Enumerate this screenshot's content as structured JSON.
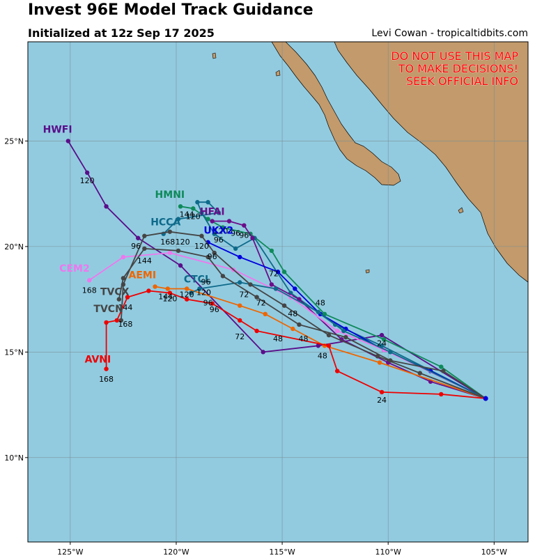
{
  "title": "Invest 96E Model Track Guidance",
  "subtitle": "Initialized at 12z Sep 17 2025",
  "credit": "Levi Cowan - tropicaltidbits.com",
  "warning": [
    "DO NOT USE THIS MAP",
    "TO MAKE DECISIONS!",
    "SEEK OFFICIAL INFO"
  ],
  "colors": {
    "ocean": "#92cbe0",
    "land": "#c29a6b",
    "grid": "#7a8f96",
    "warning": "#ff0000"
  },
  "axes": {
    "lon_range": [
      -127,
      -103.4
    ],
    "lat_range": [
      6.0,
      29.7
    ],
    "x_ticks": [
      {
        "value": -125,
        "label": "125°W"
      },
      {
        "value": -120,
        "label": "120°W"
      },
      {
        "value": -115,
        "label": "115°W"
      },
      {
        "value": -110,
        "label": "110°W"
      },
      {
        "value": -105,
        "label": "105°W"
      }
    ],
    "y_ticks": [
      {
        "value": 25,
        "label": "25°N"
      },
      {
        "value": 20,
        "label": "20°N"
      },
      {
        "value": 15,
        "label": "15°N"
      },
      {
        "value": 10,
        "label": "10°N"
      }
    ],
    "grid": true
  },
  "chart_data": {
    "type": "map-tracks",
    "start": [
      -105.4,
      12.8
    ],
    "models": [
      {
        "name": "HWFI",
        "color": "#5a0e8a",
        "points": [
          [
            -110.3,
            15.8
          ],
          [
            -113.3,
            15.3
          ],
          [
            -115.9,
            15.0
          ],
          [
            -119.8,
            19.1
          ],
          [
            -121.8,
            20.4
          ],
          [
            -123.3,
            21.9
          ],
          [
            -124.2,
            23.5
          ],
          [
            -125.1,
            25.0
          ]
        ],
        "hour_labels": [
          {
            "text": "24",
            "lon": -110.3,
            "lat": 15.3
          },
          {
            "text": "48",
            "lon": -113.1,
            "lat": 14.7
          },
          {
            "text": "96",
            "lon": -121.9,
            "lat": 19.9
          },
          {
            "text": "120",
            "lon": -124.2,
            "lat": 23.0
          }
        ],
        "label": {
          "text": "HWFI",
          "lon": -125.6,
          "lat": 25.4
        }
      },
      {
        "name": "HMNI",
        "color": "#0e8a5a",
        "points": [
          [
            -107.5,
            14.3
          ],
          [
            -110.2,
            15.6
          ],
          [
            -113.0,
            16.8
          ],
          [
            -114.9,
            18.8
          ],
          [
            -115.5,
            19.8
          ],
          [
            -116.5,
            20.6
          ],
          [
            -117.8,
            20.9
          ],
          [
            -118.5,
            21.3
          ],
          [
            -119.2,
            21.8
          ],
          [
            -119.8,
            21.9
          ]
        ],
        "hour_labels": [
          {
            "text": "96",
            "lon": -117.2,
            "lat": 20.5
          },
          {
            "text": "120",
            "lon": -119.2,
            "lat": 21.3
          },
          {
            "text": "144",
            "lon": -119.5,
            "lat": 21.4
          }
        ],
        "label": {
          "text": "HMNI",
          "lon": -120.3,
          "lat": 22.3
        }
      },
      {
        "name": "HCCA",
        "color": "#0e6a8a",
        "points": [
          [
            -110.3,
            15.3
          ],
          [
            -112.5,
            16.3
          ],
          [
            -114.6,
            17.8
          ],
          [
            -116.3,
            20.4
          ],
          [
            -117.2,
            19.9
          ],
          [
            -118.2,
            20.6
          ],
          [
            -118.8,
            21.6
          ],
          [
            -119.0,
            22.1
          ],
          [
            -118.5,
            22.1
          ],
          [
            -118.0,
            21.6
          ],
          [
            -119.9,
            21.3
          ],
          [
            -120.6,
            20.6
          ]
        ],
        "hour_labels": [
          {
            "text": "96",
            "lon": -118.0,
            "lat": 20.2
          },
          {
            "text": "120",
            "lon": -119.7,
            "lat": 20.1
          },
          {
            "text": "168",
            "lon": -120.4,
            "lat": 20.1
          }
        ],
        "label": {
          "text": "HCCA",
          "lon": -120.5,
          "lat": 21.0
        }
      },
      {
        "name": "HFAI",
        "color": "#6a0e8a",
        "points": [
          [
            -108.0,
            13.6
          ],
          [
            -110.0,
            14.5
          ],
          [
            -112.2,
            15.6
          ],
          [
            -114.2,
            17.5
          ],
          [
            -115.5,
            18.2
          ],
          [
            -116.4,
            20.4
          ],
          [
            -116.8,
            21.0
          ],
          [
            -117.5,
            21.2
          ],
          [
            -118.3,
            21.2
          ]
        ],
        "hour_labels": [
          {
            "text": "72",
            "lon": -115.4,
            "lat": 18.6
          },
          {
            "text": "96",
            "lon": -116.8,
            "lat": 20.4
          },
          {
            "text": "120",
            "lon": -117.9,
            "lat": 20.6
          }
        ],
        "label": {
          "text": "HFAI",
          "lon": -118.3,
          "lat": 21.5
        }
      },
      {
        "name": "UKX2",
        "color": "#0000dd",
        "points": [
          [
            -108.0,
            14.1
          ],
          [
            -110.2,
            15.1
          ],
          [
            -112.0,
            16.1
          ],
          [
            -113.2,
            16.8
          ],
          [
            -114.4,
            18.0
          ],
          [
            -115.2,
            18.8
          ],
          [
            -117.0,
            19.5
          ],
          [
            -118.5,
            20.2
          ]
        ],
        "hour_labels": [
          {
            "text": "48",
            "lon": -113.2,
            "lat": 17.2
          },
          {
            "text": "96",
            "lon": -118.3,
            "lat": 19.4
          },
          {
            "text": "120",
            "lon": -118.8,
            "lat": 19.9
          }
        ],
        "label": {
          "text": "UKX2",
          "lon": -118.0,
          "lat": 20.6
        }
      },
      {
        "name": "CEM2",
        "color": "#ee77ee",
        "points": [
          [
            -110.2,
            15.1
          ],
          [
            -112.4,
            16.0
          ],
          [
            -114.6,
            17.6
          ],
          [
            -117.3,
            18.9
          ],
          [
            -120.3,
            19.7
          ],
          [
            -122.5,
            19.5
          ],
          [
            -124.1,
            18.4
          ]
        ],
        "hour_labels": [
          {
            "text": "144",
            "lon": -121.5,
            "lat": 19.2
          },
          {
            "text": "168",
            "lon": -124.1,
            "lat": 17.8
          }
        ],
        "label": {
          "text": "CEM2",
          "lon": -124.8,
          "lat": 18.8
        }
      },
      {
        "name": "AEMI",
        "color": "#ee6600",
        "points": [
          [
            -110.4,
            14.5
          ],
          [
            -113.0,
            15.3
          ],
          [
            -114.5,
            16.1
          ],
          [
            -115.8,
            16.8
          ],
          [
            -117.0,
            17.2
          ],
          [
            -119.5,
            18.0
          ],
          [
            -120.4,
            18.0
          ],
          [
            -121.0,
            18.1
          ]
        ],
        "hour_labels": [
          {
            "text": "48",
            "lon": -114.0,
            "lat": 15.5
          },
          {
            "text": "120",
            "lon": -119.5,
            "lat": 17.6
          },
          {
            "text": "144",
            "lon": -120.5,
            "lat": 17.5
          }
        ],
        "label": {
          "text": "AEMI",
          "lon": -121.6,
          "lat": 18.5
        }
      },
      {
        "name": "CTCL",
        "color": "#0e6a8a",
        "points": [
          [
            -109.9,
            15.0
          ],
          [
            -112.1,
            16.0
          ],
          [
            -113.3,
            16.9
          ],
          [
            -115.3,
            18.0
          ],
          [
            -117.0,
            18.3
          ],
          [
            -118.9,
            18.0
          ],
          [
            -119.3,
            17.8
          ]
        ],
        "hour_labels": [
          {
            "text": "72",
            "lon": -116.8,
            "lat": 17.6
          },
          {
            "text": "96",
            "lon": -118.5,
            "lat": 17.2
          },
          {
            "text": "120",
            "lon": -118.7,
            "lat": 17.7
          }
        ],
        "label": {
          "text": "CTCL",
          "lon": -119.0,
          "lat": 18.3
        }
      },
      {
        "name": "TVCX",
        "color": "#454545",
        "points": [
          [
            -107.4,
            14.1
          ],
          [
            -109.9,
            14.6
          ],
          [
            -112.0,
            15.7
          ],
          [
            -114.2,
            16.3
          ],
          [
            -116.2,
            17.6
          ],
          [
            -117.8,
            18.6
          ],
          [
            -118.5,
            19.5
          ],
          [
            -119.9,
            19.8
          ],
          [
            -121.5,
            19.9
          ],
          [
            -122.5,
            18.5
          ],
          [
            -122.7,
            17.5
          ]
        ],
        "hour_labels": [
          {
            "text": "72",
            "lon": -116.0,
            "lat": 17.2
          },
          {
            "text": "96",
            "lon": -118.6,
            "lat": 18.2
          },
          {
            "text": "144",
            "lon": -122.4,
            "lat": 17.0
          }
        ],
        "label": {
          "text": "TVCX",
          "lon": -122.9,
          "lat": 17.7
        }
      },
      {
        "name": "TVCN",
        "color": "#454545",
        "points": [
          [
            -108.5,
            14.0
          ],
          [
            -110.5,
            14.8
          ],
          [
            -112.8,
            15.8
          ],
          [
            -114.9,
            17.2
          ],
          [
            -116.5,
            18.2
          ],
          [
            -118.2,
            19.7
          ],
          [
            -118.8,
            20.5
          ],
          [
            -120.3,
            20.7
          ],
          [
            -121.5,
            20.5
          ],
          [
            -122.5,
            18.2
          ],
          [
            -122.6,
            16.5
          ]
        ],
        "hour_labels": [
          {
            "text": "168",
            "lon": -122.4,
            "lat": 16.2
          },
          {
            "text": "48",
            "lon": -114.5,
            "lat": 16.7
          }
        ],
        "label": {
          "text": "TVCN",
          "lon": -123.2,
          "lat": 16.9
        }
      },
      {
        "name": "AVNI",
        "color": "#ee0000",
        "points": [
          [
            -107.5,
            13.0
          ],
          [
            -110.3,
            13.1
          ],
          [
            -112.4,
            14.1
          ],
          [
            -112.8,
            15.3
          ],
          [
            -116.2,
            16.0
          ],
          [
            -117.0,
            16.5
          ],
          [
            -118.3,
            17.3
          ],
          [
            -119.5,
            17.5
          ],
          [
            -120.3,
            17.8
          ],
          [
            -121.3,
            17.9
          ],
          [
            -122.3,
            17.6
          ],
          [
            -122.8,
            16.5
          ],
          [
            -123.3,
            16.4
          ],
          [
            -123.3,
            14.2
          ]
        ],
        "hour_labels": [
          {
            "text": "24",
            "lon": -110.3,
            "lat": 12.6
          },
          {
            "text": "48",
            "lon": -115.2,
            "lat": 15.5
          },
          {
            "text": "72",
            "lon": -117.0,
            "lat": 15.6
          },
          {
            "text": "96",
            "lon": -118.2,
            "lat": 16.9
          },
          {
            "text": "120",
            "lon": -120.3,
            "lat": 17.4
          },
          {
            "text": "168",
            "lon": -123.3,
            "lat": 13.6
          }
        ],
        "label": {
          "text": "AVNI",
          "lon": -123.7,
          "lat": 14.5
        }
      }
    ]
  }
}
